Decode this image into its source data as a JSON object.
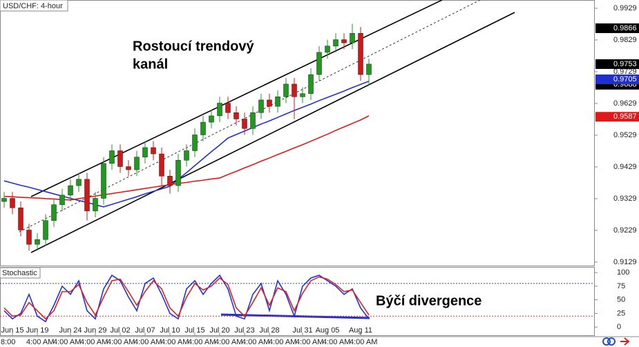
{
  "chart_data": {
    "type": "candlestick",
    "title": "USD/CHF: 4-hour",
    "annotations": [
      [
        "Rostoucí trendový",
        "kanál"
      ],
      [
        "Býčí divergence"
      ]
    ],
    "categories": [
      null,
      "Jun 15",
      null,
      null,
      "Jun 19",
      null,
      null,
      null,
      "Jun 24",
      null,
      null,
      "Jun 29",
      null,
      null,
      "Jul 02",
      null,
      null,
      "Jul 07",
      null,
      null,
      "Jul 10",
      null,
      null,
      "Jul 15",
      null,
      null,
      "Jul 20",
      null,
      null,
      "Jul 23",
      null,
      null,
      "Jul 28",
      null,
      null,
      null,
      "Jul 31",
      null,
      null,
      "Aug 05",
      null,
      null,
      null,
      "Aug 11",
      null
    ],
    "time_strip": [
      "8:00",
      "4:00 AM",
      "4:00 AM",
      "4:00 AM",
      "4:00 AM",
      "4:00 AM",
      "4:00 AM",
      "4:00 AM",
      "4:00 AM",
      "4:00 AM",
      "4:00 AM",
      "4:00 AM",
      "4:00 AM",
      "4:00 AM"
    ],
    "open": [
      0.932,
      0.933,
      0.93,
      0.923,
      0.9185,
      0.92,
      0.926,
      0.931,
      0.934,
      0.937,
      0.939,
      0.929,
      0.933,
      0.944,
      0.948,
      0.943,
      0.942,
      0.946,
      0.949,
      0.947,
      0.94,
      0.937,
      0.945,
      0.948,
      0.953,
      0.957,
      0.959,
      0.963,
      0.96,
      0.958,
      0.955,
      0.96,
      0.964,
      0.962,
      0.965,
      0.969,
      0.965,
      0.966,
      0.972,
      0.979,
      0.981,
      0.983,
      0.982,
      0.985,
      0.972
    ],
    "high": [
      0.935,
      0.935,
      0.932,
      0.925,
      0.922,
      0.928,
      0.933,
      0.936,
      0.939,
      0.941,
      0.941,
      0.935,
      0.946,
      0.95,
      0.95,
      0.945,
      0.948,
      0.951,
      0.951,
      0.949,
      0.942,
      0.947,
      0.95,
      0.955,
      0.959,
      0.961,
      0.965,
      0.965,
      0.962,
      0.96,
      0.962,
      0.966,
      0.966,
      0.967,
      0.971,
      0.971,
      0.968,
      0.974,
      0.981,
      0.983,
      0.985,
      0.985,
      0.988,
      0.987,
      0.977
    ],
    "low": [
      0.93,
      0.928,
      0.921,
      0.9165,
      0.9165,
      0.918,
      0.924,
      0.929,
      0.932,
      0.935,
      0.926,
      0.927,
      0.931,
      0.942,
      0.941,
      0.94,
      0.94,
      0.944,
      0.945,
      0.937,
      0.9345,
      0.935,
      0.943,
      0.946,
      0.951,
      0.955,
      0.957,
      0.958,
      0.956,
      0.953,
      0.953,
      0.958,
      0.96,
      0.96,
      0.963,
      0.958,
      0.963,
      0.964,
      0.97,
      0.977,
      0.979,
      0.98,
      0.98,
      0.97,
      0.9688
    ],
    "close": [
      0.933,
      0.93,
      0.923,
      0.9185,
      0.92,
      0.926,
      0.931,
      0.934,
      0.937,
      0.939,
      0.929,
      0.933,
      0.944,
      0.948,
      0.943,
      0.942,
      0.946,
      0.949,
      0.947,
      0.94,
      0.937,
      0.945,
      0.948,
      0.953,
      0.957,
      0.959,
      0.963,
      0.96,
      0.958,
      0.955,
      0.96,
      0.964,
      0.962,
      0.965,
      0.969,
      0.965,
      0.966,
      0.972,
      0.979,
      0.981,
      0.983,
      0.982,
      0.985,
      0.972,
      0.9753
    ],
    "up_color": "#1f9a1f",
    "down_color": "#d01818",
    "moving_averages": [
      {
        "color": "#1f2fd0",
        "values": [
          0.9385,
          0.9378,
          0.9371,
          0.9365,
          0.9358,
          0.9351,
          0.9344,
          0.9337,
          0.933,
          0.9323,
          0.9317,
          0.931,
          0.9303,
          0.9311,
          0.9319,
          0.9327,
          0.9335,
          0.9344,
          0.9352,
          0.936,
          0.9368,
          0.939,
          0.9411,
          0.9433,
          0.9455,
          0.9477,
          0.9498,
          0.952,
          0.9531,
          0.9542,
          0.9553,
          0.9564,
          0.9574,
          0.9585,
          0.9596,
          0.9607,
          0.9617,
          0.9627,
          0.9638,
          0.9648,
          0.9658,
          0.9668,
          0.9679,
          0.9689,
          0.9699
        ]
      },
      {
        "color": "#e01818",
        "values": [
          0.9336,
          0.9335,
          0.9333,
          0.9332,
          0.9331,
          0.9329,
          0.9328,
          0.9326,
          0.9325,
          0.9329,
          0.9333,
          0.9337,
          0.9341,
          0.9345,
          0.9349,
          0.9353,
          0.9357,
          0.9361,
          0.9365,
          0.9369,
          0.9373,
          0.9377,
          0.938,
          0.9384,
          0.9387,
          0.9391,
          0.9394,
          0.9405,
          0.9415,
          0.9426,
          0.9436,
          0.9447,
          0.9457,
          0.9468,
          0.9478,
          0.9489,
          0.9499,
          0.951,
          0.9521,
          0.9532,
          0.9544,
          0.9555,
          0.9566,
          0.9577,
          0.959
        ]
      }
    ],
    "ylim": [
      0.9118,
      0.9955
    ],
    "yticks": [
      0.9929,
      0.9829,
      0.9729,
      0.9629,
      0.9529,
      0.9429,
      0.9329,
      0.9229,
      0.9129
    ],
    "price_markers": [
      {
        "value": 0.9866,
        "color": "#000000"
      },
      {
        "value": 0.9753,
        "color": "#000000"
      },
      {
        "value": 0.9688,
        "color": "#000000"
      },
      {
        "value": 0.9705,
        "color": "#1f2fd0"
      },
      {
        "value": 0.9587,
        "color": "#e01818"
      }
    ],
    "stochastic": {
      "title": "Stochastic",
      "ylim": [
        -10,
        109
      ],
      "yticks": [
        100,
        75,
        50,
        25,
        0
      ],
      "levels": [
        {
          "value": 80,
          "color": "#3040d0"
        },
        {
          "value": 20,
          "color": "#e03030"
        }
      ],
      "series": [
        {
          "color": "#2030e0",
          "values": [
            30,
            15,
            25,
            60,
            20,
            10,
            40,
            75,
            60,
            85,
            30,
            15,
            70,
            95,
            85,
            55,
            30,
            80,
            90,
            60,
            25,
            15,
            70,
            85,
            60,
            80,
            95,
            70,
            20,
            15,
            60,
            80,
            30,
            85,
            60,
            20,
            75,
            90,
            95,
            85,
            75,
            60,
            70,
            35,
            15
          ]
        },
        {
          "color": "#e02020",
          "values": [
            35,
            20,
            22,
            45,
            30,
            15,
            30,
            65,
            65,
            78,
            45,
            22,
            55,
            85,
            88,
            65,
            40,
            65,
            85,
            70,
            35,
            20,
            55,
            80,
            68,
            75,
            90,
            78,
            35,
            20,
            45,
            72,
            40,
            72,
            65,
            30,
            62,
            85,
            92,
            88,
            78,
            65,
            68,
            45,
            22
          ]
        }
      ]
    }
  }
}
